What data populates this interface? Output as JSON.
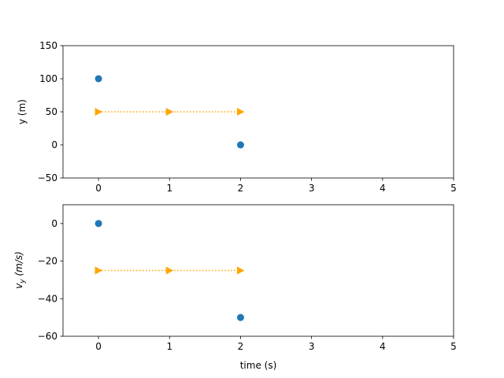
{
  "chart_data": [
    {
      "type": "scatter",
      "title": "",
      "ylabel": "y (m)",
      "xlim": [
        -0.5,
        5
      ],
      "ylim": [
        -50,
        150
      ],
      "xticks": [
        0,
        1,
        2,
        3,
        4,
        5
      ],
      "yticks": [
        -50,
        0,
        50,
        100,
        150
      ],
      "grid": false,
      "series": [
        {
          "style": "markers",
          "marker": "circle",
          "color": "#1f77b4",
          "x": [
            0,
            2
          ],
          "y": [
            100,
            0
          ]
        },
        {
          "style": "dotted-line-with-triangles",
          "marker": "triangle-right",
          "color": "#ffa500",
          "x": [
            0,
            1,
            2
          ],
          "y": [
            50,
            50,
            50
          ]
        }
      ]
    },
    {
      "type": "scatter",
      "title": "",
      "xlabel": "time (s)",
      "ylabel_main": "v",
      "ylabel_sub": "y",
      "ylabel_rest": " (m/s)",
      "xlim": [
        -0.5,
        5
      ],
      "ylim": [
        -60,
        10
      ],
      "xticks": [
        0,
        1,
        2,
        3,
        4,
        5
      ],
      "yticks": [
        -60,
        -40,
        -20,
        0
      ],
      "grid": false,
      "series": [
        {
          "style": "markers",
          "marker": "circle",
          "color": "#1f77b4",
          "x": [
            0,
            2
          ],
          "y": [
            0,
            -50
          ]
        },
        {
          "style": "dotted-line-with-triangles",
          "marker": "triangle-right",
          "color": "#ffa500",
          "x": [
            0,
            1,
            2
          ],
          "y": [
            -25,
            -25,
            -25
          ]
        }
      ]
    }
  ]
}
